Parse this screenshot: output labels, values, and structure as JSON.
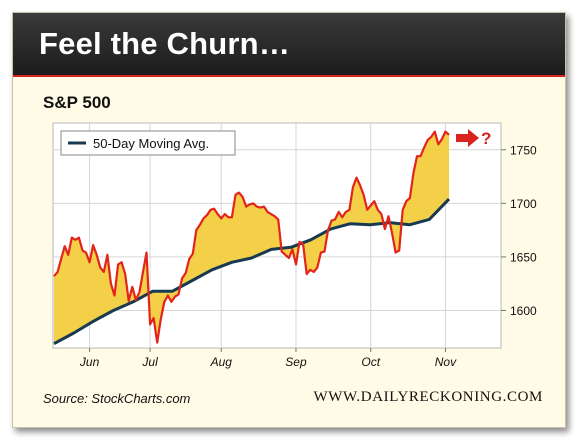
{
  "header": {
    "title": "Feel the Churn…"
  },
  "chart_data": {
    "type": "area",
    "title": "S&P 500",
    "x_tick_labels": [
      "Jun",
      "Jul",
      "Aug",
      "Sep",
      "Oct",
      "Nov"
    ],
    "y_ticks": [
      1600,
      1650,
      1700,
      1750
    ],
    "ylim": [
      1565,
      1775
    ],
    "grid": true,
    "legend_position": "top-left",
    "series": [
      {
        "kind": "price",
        "color": "#e3241b",
        "values": [
          1632,
          1636,
          1648,
          1660,
          1652,
          1668,
          1666,
          1668,
          1656,
          1654,
          1645,
          1661,
          1652,
          1640,
          1636,
          1652,
          1625,
          1614,
          1643,
          1645,
          1634,
          1609,
          1622,
          1610,
          1617,
          1636,
          1654,
          1587,
          1593,
          1570,
          1592,
          1608,
          1614,
          1608,
          1613,
          1615,
          1630,
          1635,
          1648,
          1653,
          1675,
          1680,
          1686,
          1689,
          1694,
          1695,
          1690,
          1686,
          1690,
          1687,
          1687,
          1708,
          1710,
          1706,
          1697,
          1699,
          1700,
          1697,
          1696,
          1697,
          1692,
          1690,
          1688,
          1685,
          1655,
          1652,
          1649,
          1657,
          1643,
          1664,
          1662,
          1634,
          1638,
          1636,
          1640,
          1654,
          1655,
          1675,
          1684,
          1685,
          1692,
          1687,
          1692,
          1694,
          1715,
          1724,
          1717,
          1708,
          1694,
          1698,
          1702,
          1694,
          1690,
          1676,
          1688,
          1672,
          1654,
          1656,
          1694,
          1702,
          1705,
          1728,
          1744,
          1744,
          1752,
          1759,
          1762,
          1767,
          1755,
          1760,
          1767,
          1764
        ]
      },
      {
        "kind": "moving_average",
        "name": "50-Day Moving Avg.",
        "color": "#173a52",
        "values": [
          1569,
          1579,
          1590,
          1600,
          1608,
          1618,
          1618,
          1628,
          1638,
          1645,
          1649,
          1657,
          1659,
          1666,
          1676,
          1681,
          1680,
          1682,
          1680,
          1685,
          1704
        ]
      }
    ],
    "fill_color": "#f2cd3d",
    "annotation": "?",
    "annotation_color": "#d8231f"
  },
  "footer": {
    "source": "Source: StockCharts.com",
    "site": "WWW.DAILYRECKONING.COM"
  }
}
